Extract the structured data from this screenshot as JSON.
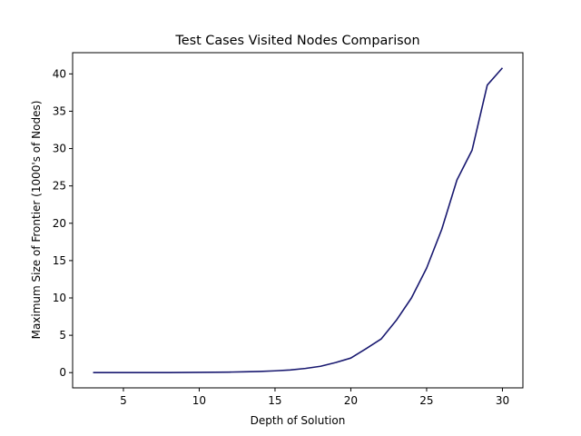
{
  "chart_data": {
    "type": "line",
    "title": "Test Cases Visited Nodes Comparison",
    "xlabel": "Depth of Solution",
    "ylabel": "Maximum Size of Frontier (1000's of Nodes)",
    "xlim": [
      1.65,
      31.35
    ],
    "ylim": [
      -2.04,
      42.84
    ],
    "xticks": [
      5,
      10,
      15,
      20,
      25,
      30
    ],
    "yticks": [
      0,
      5,
      10,
      15,
      20,
      25,
      30,
      35,
      40
    ],
    "grid": false,
    "series": [
      {
        "color": "#191970",
        "x": [
          3,
          4,
          5,
          6,
          7,
          8,
          9,
          10,
          11,
          12,
          13,
          14,
          15,
          16,
          17,
          18,
          19,
          20,
          21,
          22,
          23,
          24,
          25,
          26,
          27,
          28,
          29,
          30
        ],
        "y": [
          0.0,
          0.0,
          0.0,
          0.0,
          0.01,
          0.01,
          0.02,
          0.03,
          0.05,
          0.07,
          0.11,
          0.16,
          0.24,
          0.36,
          0.56,
          0.85,
          1.35,
          1.95,
          3.2,
          4.5,
          7.0,
          10.0,
          14.0,
          19.2,
          25.8,
          29.8,
          38.5,
          40.8
        ]
      }
    ]
  }
}
